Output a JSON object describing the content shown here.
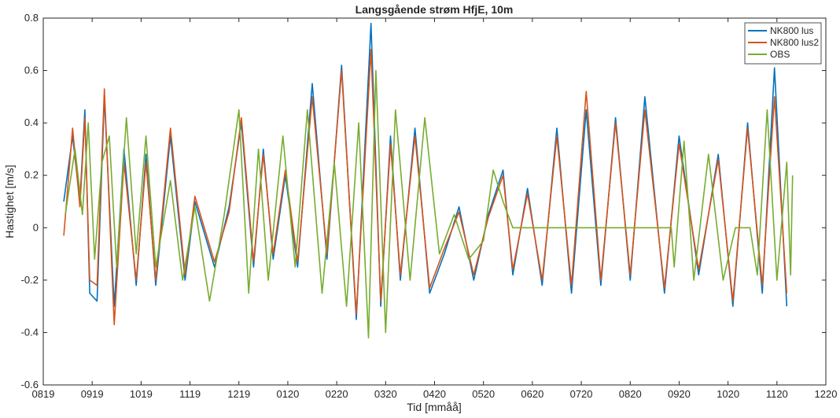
{
  "chart_data": {
    "type": "line",
    "title": "Langsgående strøm HfjE, 10m",
    "xlabel": "Tid [mmåå]",
    "ylabel": "Hastighet [m/s]",
    "xlim": [
      0,
      16
    ],
    "ylim": [
      -0.6,
      0.8
    ],
    "x_tick_values": [
      0,
      1,
      2,
      3,
      4,
      5,
      6,
      7,
      8,
      9,
      10,
      11,
      12,
      13,
      14,
      15,
      16
    ],
    "x_tick_labels": [
      "0819",
      "0919",
      "1019",
      "1119",
      "1219",
      "0120",
      "0220",
      "0320",
      "0420",
      "0520",
      "0620",
      "0720",
      "0820",
      "0920",
      "1020",
      "1120",
      "1220"
    ],
    "y_ticks": [
      -0.6,
      -0.4,
      -0.2,
      0,
      0.2,
      0.4,
      0.6,
      0.8
    ],
    "y_tick_labels": [
      "-0.6",
      "-0.4",
      "-0.2",
      "0",
      "0.2",
      "0.4",
      "0.6",
      "0.8"
    ],
    "x_axis_note": "x values are months on the time axis, 0 = 0819 tick",
    "grid": false,
    "legend_position": "top-right",
    "series": [
      {
        "name": "NK800 lus",
        "color": "#0072BD",
        "x": [
          0.42,
          0.6,
          0.75,
          0.85,
          0.95,
          1.1,
          1.25,
          1.45,
          1.65,
          1.9,
          2.1,
          2.3,
          2.6,
          2.9,
          3.1,
          3.5,
          3.8,
          4.05,
          4.3,
          4.5,
          4.7,
          4.95,
          5.2,
          5.5,
          5.8,
          6.1,
          6.4,
          6.7,
          6.9,
          7.1,
          7.3,
          7.6,
          7.9,
          8.2,
          8.5,
          8.8,
          9.1,
          9.4,
          9.6,
          9.9,
          10.2,
          10.5,
          10.8,
          11.1,
          11.4,
          11.7,
          12.0,
          12.3,
          12.7,
          13.0,
          13.4,
          13.8,
          14.1,
          14.4,
          14.7,
          14.95,
          15.2
        ],
        "y": [
          0.1,
          0.35,
          0.1,
          0.45,
          -0.25,
          -0.28,
          0.5,
          -0.3,
          0.3,
          -0.22,
          0.28,
          -0.22,
          0.35,
          -0.2,
          0.1,
          -0.15,
          0.08,
          0.4,
          -0.15,
          0.3,
          -0.12,
          0.2,
          -0.15,
          0.55,
          -0.12,
          0.62,
          -0.35,
          0.78,
          -0.3,
          0.35,
          -0.2,
          0.38,
          -0.25,
          -0.1,
          0.08,
          -0.2,
          0.05,
          0.22,
          -0.18,
          0.15,
          -0.22,
          0.38,
          -0.25,
          0.45,
          -0.22,
          0.42,
          -0.2,
          0.5,
          -0.25,
          0.35,
          -0.18,
          0.28,
          -0.3,
          0.4,
          -0.25,
          0.61,
          -0.3
        ]
      },
      {
        "name": "NK800 lus2",
        "color": "#D95319",
        "x": [
          0.42,
          0.6,
          0.75,
          0.85,
          0.95,
          1.1,
          1.25,
          1.45,
          1.65,
          1.9,
          2.1,
          2.3,
          2.6,
          2.9,
          3.1,
          3.5,
          3.8,
          4.05,
          4.3,
          4.5,
          4.7,
          4.95,
          5.2,
          5.5,
          5.8,
          6.1,
          6.4,
          6.7,
          6.9,
          7.1,
          7.3,
          7.6,
          7.9,
          8.2,
          8.5,
          8.8,
          9.1,
          9.4,
          9.6,
          9.9,
          10.2,
          10.5,
          10.8,
          11.1,
          11.4,
          11.7,
          12.0,
          12.3,
          12.7,
          13.0,
          13.4,
          13.8,
          14.1,
          14.4,
          14.7,
          14.95,
          15.2
        ],
        "y": [
          -0.03,
          0.38,
          0.08,
          0.42,
          -0.2,
          -0.22,
          0.53,
          -0.37,
          0.25,
          -0.2,
          0.25,
          -0.2,
          0.38,
          -0.18,
          0.12,
          -0.13,
          0.06,
          0.42,
          -0.13,
          0.28,
          -0.1,
          0.22,
          -0.13,
          0.5,
          -0.1,
          0.6,
          -0.33,
          0.68,
          -0.28,
          0.32,
          -0.18,
          0.35,
          -0.23,
          -0.08,
          0.06,
          -0.18,
          0.04,
          0.2,
          -0.16,
          0.13,
          -0.2,
          0.35,
          -0.22,
          0.52,
          -0.2,
          0.4,
          -0.18,
          0.45,
          -0.23,
          0.32,
          -0.16,
          0.26,
          -0.28,
          0.38,
          -0.22,
          0.5,
          -0.25
        ]
      },
      {
        "name": "OBS",
        "color": "#77AC30",
        "x": [
          0.45,
          0.65,
          0.8,
          0.92,
          1.05,
          1.2,
          1.35,
          1.5,
          1.7,
          1.9,
          2.1,
          2.3,
          2.6,
          2.85,
          3.1,
          3.4,
          3.7,
          4.0,
          4.2,
          4.4,
          4.6,
          4.9,
          5.15,
          5.4,
          5.7,
          5.95,
          6.2,
          6.45,
          6.65,
          6.8,
          7.0,
          7.2,
          7.5,
          7.8,
          8.1,
          8.4,
          8.7,
          9.0,
          9.2,
          9.4,
          9.6,
          10.0,
          10.5,
          11.0,
          11.5,
          12.0,
          12.5,
          12.84,
          12.9,
          13.1,
          13.3,
          13.6,
          13.9,
          14.15,
          14.3,
          14.45,
          14.6,
          14.8,
          15.0,
          15.2,
          15.28,
          15.32
        ],
        "y": [
          0.05,
          0.3,
          0.05,
          0.4,
          -0.12,
          0.25,
          0.35,
          -0.15,
          0.42,
          -0.1,
          0.35,
          -0.15,
          0.18,
          -0.2,
          0.08,
          -0.28,
          0.05,
          0.45,
          -0.25,
          0.3,
          -0.2,
          0.35,
          -0.15,
          0.45,
          -0.25,
          0.25,
          -0.3,
          0.4,
          -0.42,
          0.6,
          -0.4,
          0.45,
          -0.2,
          0.42,
          -0.1,
          0.05,
          -0.12,
          -0.05,
          0.22,
          0.1,
          0.0,
          0.0,
          0.0,
          0.0,
          0.0,
          0.0,
          0.0,
          0.0,
          -0.15,
          0.33,
          -0.2,
          0.28,
          -0.2,
          0.0,
          0.0,
          0.0,
          -0.18,
          0.45,
          -0.2,
          0.25,
          -0.18,
          0.2
        ]
      }
    ]
  }
}
